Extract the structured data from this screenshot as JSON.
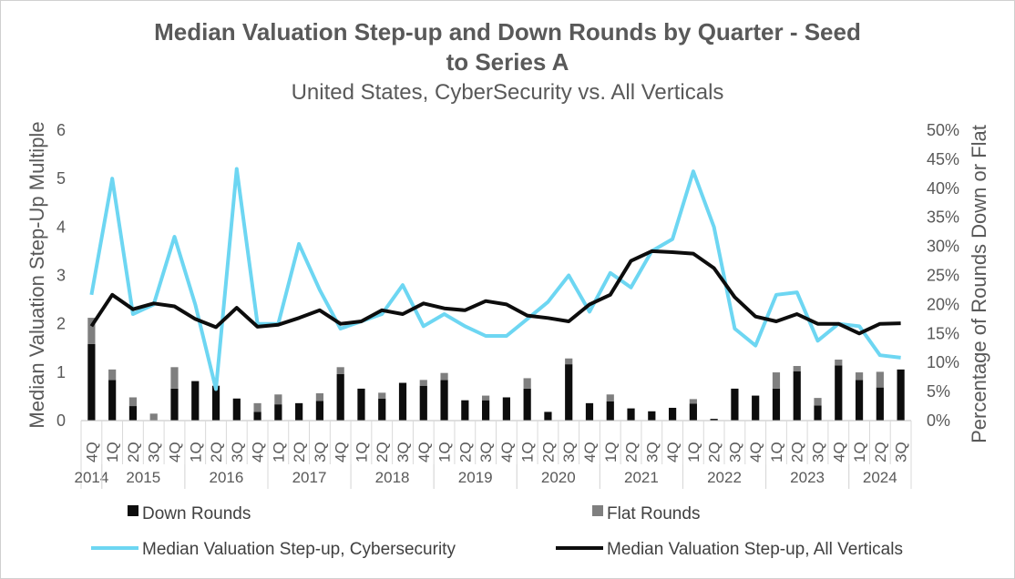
{
  "colors": {
    "down": "#0d0d0d",
    "flat": "#7f7f7f",
    "cyber": "#6dd6f2",
    "all": "#0d0d0d",
    "text": "#595959"
  },
  "chart_data": {
    "type": "bar",
    "title_line1": "Median Valuation Step-up and Down Rounds by Quarter - Seed",
    "title_line2": "to Series A",
    "subtitle": "United States, CyberSecurity vs. All Verticals",
    "ylabel": "Median Valuation Step-Up Multiple",
    "y2label": "Percentage of Rounds Down or Flat",
    "ylim": [
      0,
      6
    ],
    "y2lim": [
      0,
      0.5
    ],
    "y_ticks": [
      "0",
      "1",
      "2",
      "3",
      "4",
      "5",
      "6"
    ],
    "y2_ticks": [
      "0%",
      "5%",
      "10%",
      "15%",
      "20%",
      "25%",
      "30%",
      "35%",
      "40%",
      "45%",
      "50%"
    ],
    "quarters": [
      "4Q",
      "1Q",
      "2Q",
      "3Q",
      "4Q",
      "1Q",
      "2Q",
      "3Q",
      "4Q",
      "1Q",
      "2Q",
      "3Q",
      "4Q",
      "1Q",
      "2Q",
      "3Q",
      "4Q",
      "1Q",
      "2Q",
      "3Q",
      "4Q",
      "1Q",
      "2Q",
      "3Q",
      "4Q",
      "1Q",
      "2Q",
      "3Q",
      "4Q",
      "1Q",
      "2Q",
      "3Q",
      "4Q",
      "1Q",
      "2Q",
      "3Q",
      "4Q",
      "1Q",
      "2Q",
      "3Q"
    ],
    "years": [
      {
        "label": "2014",
        "start": 0,
        "count": 1
      },
      {
        "label": "2015",
        "start": 1,
        "count": 4
      },
      {
        "label": "2016",
        "start": 5,
        "count": 4
      },
      {
        "label": "2017",
        "start": 9,
        "count": 4
      },
      {
        "label": "2018",
        "start": 13,
        "count": 4
      },
      {
        "label": "2019",
        "start": 17,
        "count": 4
      },
      {
        "label": "2020",
        "start": 21,
        "count": 4
      },
      {
        "label": "2021",
        "start": 25,
        "count": 4
      },
      {
        "label": "2022",
        "start": 29,
        "count": 4
      },
      {
        "label": "2023",
        "start": 33,
        "count": 4
      },
      {
        "label": "2024",
        "start": 37,
        "count": 3
      }
    ],
    "series": [
      {
        "name": "Down Rounds",
        "type": "bar",
        "values": [
          0.132,
          0.07,
          0.025,
          0,
          0.055,
          0.068,
          0.06,
          0.038,
          0.015,
          0.028,
          0.03,
          0.034,
          0.08,
          0.055,
          0.038,
          0.065,
          0.06,
          0.07,
          0.035,
          0.035,
          0.04,
          0.055,
          0.015,
          0.097,
          0.03,
          0.033,
          0.021,
          0.016,
          0.022,
          0.029,
          0.003,
          0.055,
          0.043,
          0.055,
          0.085,
          0.026,
          0.095,
          0.07,
          0.057,
          0.088
        ]
      },
      {
        "name": "Flat Rounds",
        "type": "bar",
        "values": [
          0.045,
          0.018,
          0.015,
          0.012,
          0.037,
          0,
          0,
          0,
          0.015,
          0.017,
          0,
          0.013,
          0.012,
          0,
          0.01,
          0,
          0.01,
          0.012,
          0,
          0.008,
          0,
          0.018,
          0,
          0.01,
          0,
          0.012,
          0,
          0,
          0,
          0.008,
          0,
          0,
          0,
          0.028,
          0.009,
          0.013,
          0.01,
          0.013,
          0.027,
          0
        ]
      },
      {
        "name": "Median Valuation Step-up, Cybersecurity",
        "type": "line",
        "values": [
          2.6,
          5.0,
          2.2,
          2.4,
          3.8,
          2.4,
          0.65,
          5.2,
          2.0,
          2.0,
          3.65,
          2.7,
          1.9,
          2.05,
          2.2,
          2.8,
          1.95,
          2.2,
          1.95,
          1.75,
          1.75,
          2.1,
          2.45,
          3.0,
          2.25,
          3.05,
          2.75,
          3.5,
          3.75,
          5.15,
          4.0,
          1.9,
          1.55,
          2.6,
          2.65,
          1.65,
          2.0,
          1.95,
          1.35,
          1.3
        ]
      },
      {
        "name": "Median Valuation Step-up, All Verticals",
        "type": "line",
        "values": [
          1.95,
          2.6,
          2.3,
          2.42,
          2.36,
          2.1,
          1.93,
          2.33,
          1.94,
          1.98,
          2.12,
          2.28,
          2.0,
          2.05,
          2.28,
          2.2,
          2.42,
          2.32,
          2.28,
          2.47,
          2.4,
          2.17,
          2.12,
          2.05,
          2.4,
          2.6,
          3.3,
          3.5,
          3.48,
          3.45,
          3.15,
          2.55,
          2.15,
          2.05,
          2.2,
          2.0,
          2.0,
          1.8,
          2.0,
          2.01
        ]
      }
    ]
  },
  "legend": {
    "down": "Down Rounds",
    "flat": "Flat Rounds",
    "cyber": "Median Valuation Step-up, Cybersecurity",
    "all": "Median Valuation Step-up, All Verticals"
  }
}
